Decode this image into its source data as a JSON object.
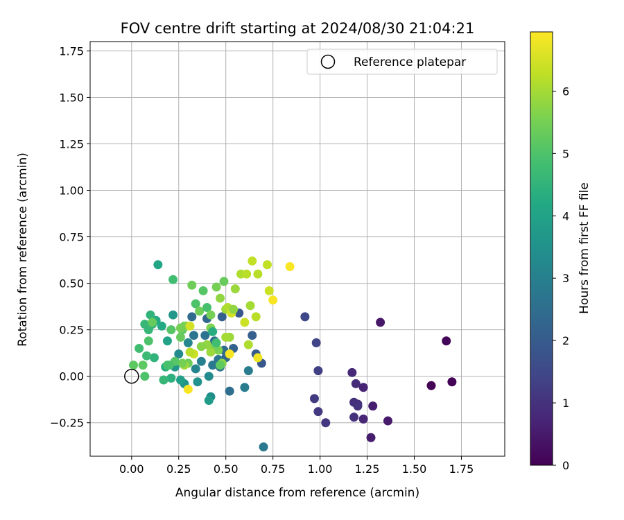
{
  "chart_data": {
    "type": "scatter",
    "title": "FOV centre drift starting at 2024/08/30 21:04:21",
    "xlabel": "Angular distance from reference (arcmin)",
    "ylabel": "Rotation from reference (arcmin)",
    "xlim": [
      -0.22,
      1.98
    ],
    "ylim": [
      -0.43,
      1.8
    ],
    "xticks": [
      0.0,
      0.25,
      0.5,
      0.75,
      1.0,
      1.25,
      1.5,
      1.75
    ],
    "xtick_labels": [
      "0.00",
      "0.25",
      "0.50",
      "0.75",
      "1.00",
      "1.25",
      "1.50",
      "1.75"
    ],
    "yticks": [
      -0.25,
      0.0,
      0.25,
      0.5,
      0.75,
      1.0,
      1.25,
      1.5,
      1.75
    ],
    "ytick_labels": [
      "−0.25",
      "0.00",
      "0.25",
      "0.50",
      "0.75",
      "1.00",
      "1.25",
      "1.50",
      "1.75"
    ],
    "grid": true,
    "legend_position": "top-right",
    "legend_entries": [
      "Reference platepar"
    ],
    "reference_point": [
      0.0,
      0.0
    ],
    "colorbar": {
      "label": "Hours from first FF file",
      "min": 0,
      "max": 6.95,
      "ticks": [
        0,
        1,
        2,
        3,
        4,
        5,
        6
      ],
      "colormap": "viridis"
    },
    "points": [
      [
        1.7,
        -0.03,
        0.05
      ],
      [
        1.59,
        -0.05,
        0.05
      ],
      [
        1.67,
        0.19,
        0.08
      ],
      [
        1.32,
        0.29,
        0.45
      ],
      [
        1.36,
        -0.24,
        0.5
      ],
      [
        1.27,
        -0.33,
        0.55
      ],
      [
        1.28,
        -0.16,
        0.6
      ],
      [
        1.23,
        -0.06,
        0.7
      ],
      [
        1.23,
        -0.23,
        0.75
      ],
      [
        1.17,
        0.02,
        0.8
      ],
      [
        1.19,
        -0.04,
        0.85
      ],
      [
        1.2,
        -0.15,
        0.9
      ],
      [
        1.18,
        -0.14,
        0.95
      ],
      [
        1.18,
        -0.22,
        1.0
      ],
      [
        1.2,
        -0.16,
        1.05
      ],
      [
        1.03,
        -0.25,
        1.1
      ],
      [
        0.99,
        -0.19,
        1.15
      ],
      [
        0.97,
        -0.12,
        1.2
      ],
      [
        0.99,
        0.03,
        1.3
      ],
      [
        0.98,
        0.18,
        1.4
      ],
      [
        0.92,
        0.32,
        1.5
      ],
      [
        0.7,
        -0.38,
        2.8
      ],
      [
        0.69,
        0.07,
        1.9
      ],
      [
        0.66,
        0.12,
        2.0
      ],
      [
        0.64,
        0.22,
        2.1
      ],
      [
        0.6,
        -0.06,
        2.9
      ],
      [
        0.62,
        0.03,
        2.9
      ],
      [
        0.57,
        0.34,
        1.9
      ],
      [
        0.54,
        0.15,
        2.2
      ],
      [
        0.52,
        -0.08,
        2.5
      ],
      [
        0.5,
        0.1,
        2.3
      ],
      [
        0.49,
        0.14,
        2.4
      ],
      [
        0.48,
        0.32,
        2.1
      ],
      [
        0.47,
        0.05,
        2.6
      ],
      [
        0.46,
        0.09,
        2.7
      ],
      [
        0.44,
        0.19,
        2.5
      ],
      [
        0.43,
        0.06,
        2.8
      ],
      [
        0.42,
        -0.11,
        3.4
      ],
      [
        0.41,
        -0.13,
        3.8
      ],
      [
        0.41,
        0.0,
        3.3
      ],
      [
        0.4,
        0.31,
        2.3
      ],
      [
        0.39,
        0.22,
        2.6
      ],
      [
        0.37,
        0.08,
        3.0
      ],
      [
        0.35,
        -0.03,
        3.5
      ],
      [
        0.34,
        0.04,
        3.1
      ],
      [
        0.33,
        0.22,
        2.7
      ],
      [
        0.32,
        0.32,
        2.4
      ],
      [
        0.3,
        0.18,
        3.2
      ],
      [
        0.28,
        -0.04,
        3.6
      ],
      [
        0.26,
        -0.02,
        3.9
      ],
      [
        0.25,
        0.12,
        3.3
      ],
      [
        0.23,
        0.05,
        3.7
      ],
      [
        0.22,
        0.33,
        3.7
      ],
      [
        0.21,
        -0.01,
        4.4
      ],
      [
        0.19,
        0.19,
        4.0
      ],
      [
        0.18,
        0.05,
        4.3
      ],
      [
        0.17,
        -0.02,
        4.6
      ],
      [
        0.16,
        0.27,
        4.2
      ],
      [
        0.14,
        0.6,
        4.1
      ],
      [
        0.13,
        0.3,
        4.2
      ],
      [
        0.12,
        0.1,
        4.5
      ],
      [
        0.11,
        0.28,
        4.4
      ],
      [
        0.1,
        0.33,
        4.5
      ],
      [
        0.09,
        0.25,
        4.6
      ],
      [
        0.08,
        0.11,
        4.7
      ],
      [
        0.07,
        0.28,
        4.6
      ],
      [
        0.07,
        0.0,
        5.0
      ],
      [
        0.06,
        0.06,
        5.2
      ],
      [
        0.04,
        0.15,
        4.8
      ],
      [
        0.01,
        0.06,
        5.2
      ],
      [
        0.09,
        0.19,
        5.0
      ],
      [
        0.11,
        0.29,
        5.3
      ],
      [
        0.21,
        0.25,
        5.1
      ],
      [
        0.22,
        0.52,
        4.8
      ],
      [
        0.27,
        0.25,
        5.2
      ],
      [
        0.28,
        0.27,
        5.4
      ],
      [
        0.29,
        0.27,
        5.6
      ],
      [
        0.32,
        0.49,
        5.4
      ],
      [
        0.34,
        0.39,
        5.0
      ],
      [
        0.36,
        0.35,
        5.4
      ],
      [
        0.38,
        0.46,
        5.1
      ],
      [
        0.4,
        0.37,
        4.9
      ],
      [
        0.42,
        0.33,
        5.5
      ],
      [
        0.42,
        0.26,
        5.6
      ],
      [
        0.45,
        0.48,
        5.5
      ],
      [
        0.47,
        0.42,
        5.8
      ],
      [
        0.49,
        0.51,
        5.3
      ],
      [
        0.5,
        0.36,
        5.9
      ],
      [
        0.52,
        0.21,
        5.9
      ],
      [
        0.55,
        0.47,
        5.9
      ],
      [
        0.58,
        0.55,
        6.1
      ],
      [
        0.61,
        0.55,
        6.2
      ],
      [
        0.63,
        0.38,
        6.0
      ],
      [
        0.64,
        0.62,
        6.3
      ],
      [
        0.66,
        0.32,
        6.2
      ],
      [
        0.67,
        0.55,
        6.2
      ],
      [
        0.72,
        0.6,
        6.3
      ],
      [
        0.73,
        0.46,
        6.4
      ],
      [
        0.75,
        0.41,
        6.9
      ],
      [
        0.84,
        0.59,
        6.9
      ],
      [
        0.67,
        0.1,
        6.8
      ],
      [
        0.52,
        0.12,
        6.9
      ],
      [
        0.5,
        0.21,
        6.0
      ],
      [
        0.48,
        0.07,
        5.7
      ],
      [
        0.46,
        0.14,
        5.6
      ],
      [
        0.44,
        0.15,
        5.5
      ],
      [
        0.42,
        0.13,
        5.9
      ],
      [
        0.4,
        0.17,
        5.8
      ],
      [
        0.37,
        0.16,
        5.7
      ],
      [
        0.33,
        0.12,
        6.4
      ],
      [
        0.31,
        0.13,
        6.2
      ],
      [
        0.3,
        0.07,
        5.4
      ],
      [
        0.28,
        0.06,
        6.0
      ],
      [
        0.27,
        0.07,
        5.5
      ],
      [
        0.3,
        -0.07,
        6.9
      ],
      [
        0.31,
        0.27,
        6.5
      ],
      [
        0.26,
        0.26,
        5.5
      ],
      [
        0.26,
        0.21,
        5.3
      ],
      [
        0.23,
        0.08,
        5.1
      ],
      [
        0.2,
        0.06,
        5.0
      ],
      [
        0.19,
        0.06,
        4.9
      ],
      [
        0.51,
        0.37,
        6.1
      ],
      [
        0.53,
        0.34,
        6.5
      ],
      [
        0.6,
        0.29,
        6.4
      ],
      [
        0.62,
        0.17,
        6.1
      ],
      [
        0.54,
        0.36,
        5.8
      ],
      [
        0.47,
        0.06,
        5.2
      ],
      [
        0.45,
        0.18,
        4.8
      ],
      [
        0.43,
        0.24,
        4.3
      ]
    ]
  }
}
